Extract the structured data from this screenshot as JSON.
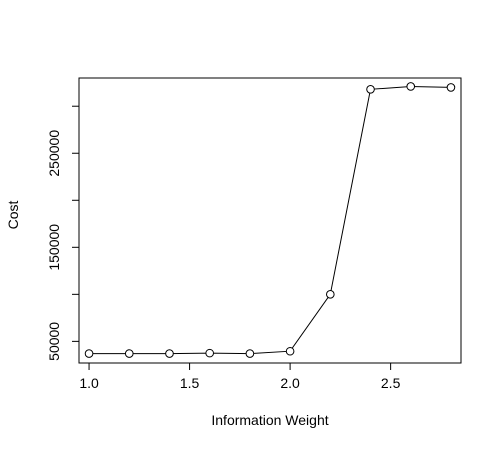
{
  "chart_data": {
    "type": "line",
    "title": "",
    "xlabel": "Information Weight",
    "ylabel": "Cost",
    "x": [
      1.0,
      1.2,
      1.4,
      1.6,
      1.8,
      2.0,
      2.2,
      2.4,
      2.6,
      2.8
    ],
    "series": [
      {
        "values": [
          37000,
          37000,
          37000,
          37500,
          37000,
          39500,
          100000,
          318000,
          321000,
          320000
        ]
      }
    ],
    "xlim": [
      0.95,
      2.85
    ],
    "ylim": [
      27000,
      330000
    ],
    "x_ticks": [
      1.0,
      1.5,
      2.0,
      2.5
    ],
    "x_tick_labels": [
      "1.0",
      "1.5",
      "2.0",
      "2.5"
    ],
    "y_ticks": [
      50000,
      150000,
      250000
    ],
    "y_tick_labels": [
      "50000",
      "150000",
      "250000"
    ],
    "y_minor_ticks": [
      100000,
      200000,
      300000
    ],
    "marker": "open-circle",
    "grid": false,
    "legend": "none",
    "colors": {
      "line": "#000000",
      "marker": "#000000",
      "axes": "#000000",
      "background": "#ffffff"
    }
  }
}
